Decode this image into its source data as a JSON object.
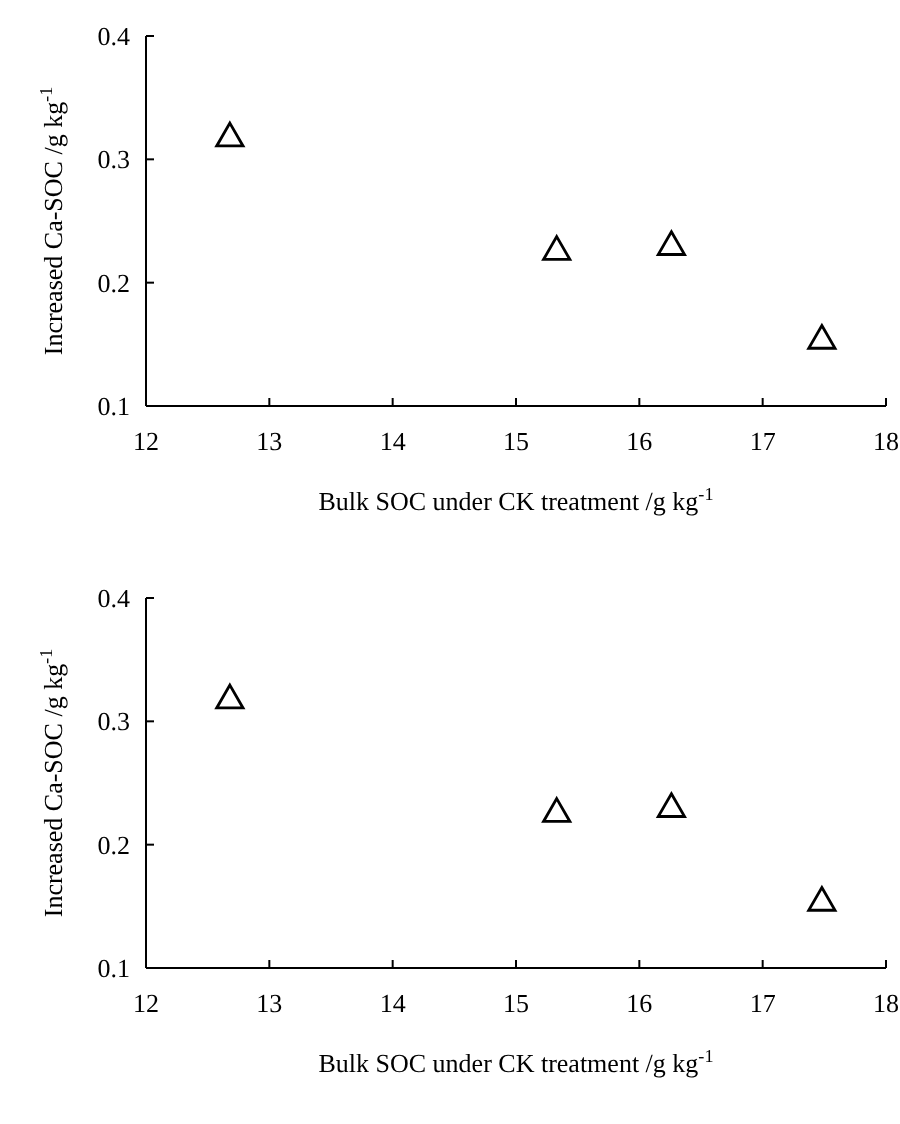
{
  "chart_data": [
    {
      "type": "scatter",
      "xlabel": "Bulk SOC under CK treatment /g kg$^{-1}$",
      "ylabel": "Increased Ca-SOC /g kg$^{-1}$",
      "x": [
        12.68,
        15.33,
        16.26,
        17.48
      ],
      "values": [
        0.317,
        0.225,
        0.229,
        0.153
      ],
      "color": "#000000",
      "marker": "triangle",
      "xlim": [
        12,
        18
      ],
      "xticks": [
        12,
        13,
        14,
        15,
        16,
        17,
        18
      ],
      "ylim": [
        0.1,
        0.4
      ],
      "yticks": [
        {
          "value": 0.1,
          "label": "0.1"
        },
        {
          "value": 0.2,
          "label": "0.2"
        },
        {
          "value": 0.3,
          "label": "0.3"
        },
        {
          "value": 0.4,
          "label": "0.4"
        }
      ],
      "grid": false
    },
    {
      "type": "scatter",
      "xlabel": "Bulk SOC under CK treatment /g kg$^{-1}$",
      "ylabel": "Increased Ca-SOC /g kg$^{-1}$",
      "x": [
        12.68,
        15.33,
        16.26,
        17.48
      ],
      "values": [
        0.317,
        0.225,
        0.229,
        0.153
      ],
      "color": "#000000",
      "marker": "triangle",
      "xlim": [
        12,
        18
      ],
      "xticks": [
        12,
        13,
        14,
        15,
        16,
        17,
        18
      ],
      "ylim": [
        0.1,
        0.4
      ],
      "yticks": [
        {
          "value": 0.1,
          "label": "0.1"
        },
        {
          "value": 0.2,
          "label": "0.2"
        },
        {
          "value": 0.3,
          "label": "0.3"
        },
        {
          "value": 0.4,
          "label": "0.4"
        }
      ],
      "grid": false
    }
  ]
}
